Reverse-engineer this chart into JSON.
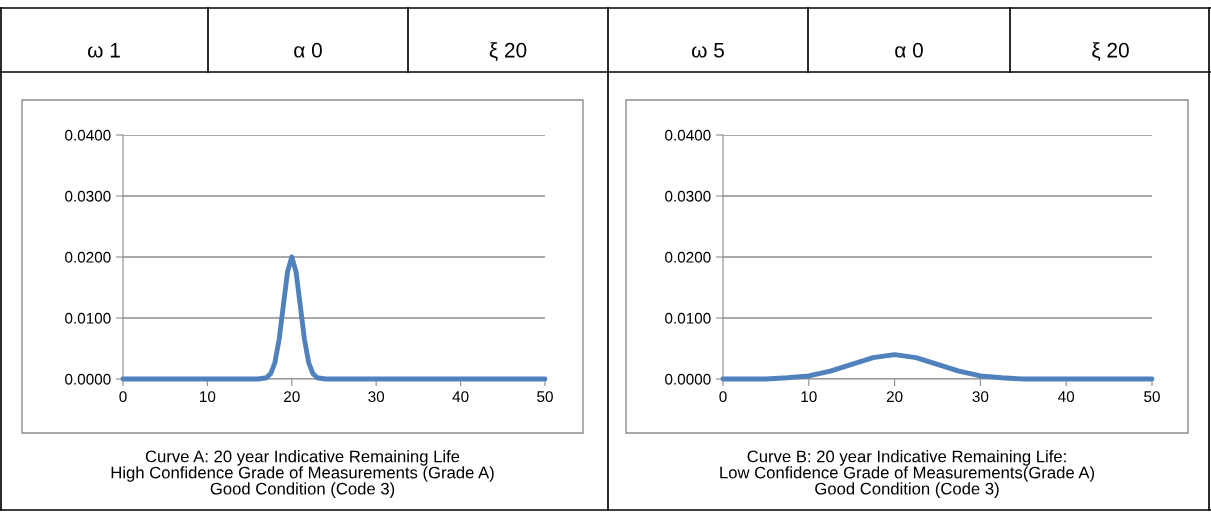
{
  "chart_data": [
    {
      "type": "line",
      "annotations": [
        "ω 1",
        "α 0",
        "ξ 20",
        "Curve A: 20 year Indicative Remaining Life\nHigh Confidence Grade of Measurements (Grade A)\nGood Condition (Code 3)"
      ],
      "series": [
        {
          "color": "#4f81bd",
          "x": [
            0,
            5,
            10,
            15,
            16,
            17,
            17.5,
            18,
            18.5,
            19,
            19.5,
            20,
            20.5,
            21,
            21.5,
            22,
            22.5,
            23,
            24,
            25,
            30,
            40,
            50
          ],
          "values": [
            0.0,
            0.0,
            0.0,
            0.0,
            0.0,
            0.0002,
            0.0009,
            0.0027,
            0.0065,
            0.0121,
            0.0176,
            0.02,
            0.0176,
            0.0121,
            0.0065,
            0.0027,
            0.0009,
            0.0002,
            0.0,
            0.0,
            0.0,
            0.0,
            0.0
          ]
        }
      ],
      "xlim": [
        0,
        50
      ],
      "xticks": [
        0,
        10,
        20,
        30,
        40,
        50
      ],
      "ylim": [
        0,
        0.04
      ],
      "yticks": [
        {
          "value": 0,
          "label": "0.0000"
        },
        {
          "value": 0.01,
          "label": "0.0100"
        },
        {
          "value": 0.02,
          "label": "0.0200"
        },
        {
          "value": 0.03,
          "label": "0.0300"
        },
        {
          "value": 0.04,
          "label": "0.0400"
        }
      ],
      "grid": "y",
      "legend": false,
      "marker": "none",
      "line_style": "solid"
    },
    {
      "type": "line",
      "annotations": [
        "ω 5",
        "α 0",
        "ξ 20",
        "Curve B: 20 year Indicative Remaining Life:\nLow Confidence Grade of Measurements(Grade A)\nGood Condition (Code 3)"
      ],
      "series": [
        {
          "color": "#4f81bd",
          "x": [
            0,
            5,
            7.5,
            10,
            12.5,
            15,
            17.5,
            20,
            22.5,
            25,
            27.5,
            30,
            32.5,
            35,
            40,
            50
          ],
          "values": [
            0.0,
            0.0,
            0.0002,
            0.0005,
            0.0013,
            0.0024,
            0.0035,
            0.004,
            0.0035,
            0.0024,
            0.0013,
            0.0005,
            0.0002,
            0.0,
            0.0,
            0.0
          ]
        }
      ],
      "xlim": [
        0,
        50
      ],
      "xticks": [
        0,
        10,
        20,
        30,
        40,
        50
      ],
      "ylim": [
        0,
        0.04
      ],
      "yticks": [
        {
          "value": 0,
          "label": "0.0000"
        },
        {
          "value": 0.01,
          "label": "0.0100"
        },
        {
          "value": 0.02,
          "label": "0.0200"
        },
        {
          "value": 0.03,
          "label": "0.0300"
        },
        {
          "value": 0.04,
          "label": "0.0400"
        }
      ],
      "grid": "y",
      "legend": false,
      "marker": "none",
      "line_style": "solid"
    }
  ]
}
